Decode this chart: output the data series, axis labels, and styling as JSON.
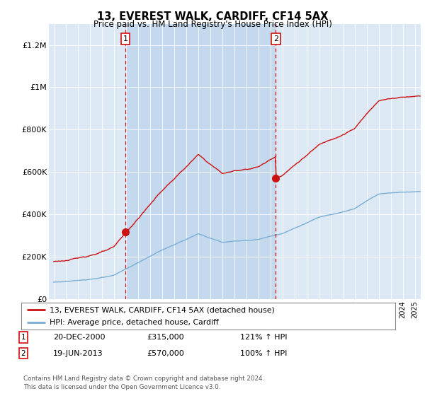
{
  "title": "13, EVEREST WALK, CARDIFF, CF14 5AX",
  "subtitle": "Price paid vs. HM Land Registry's House Price Index (HPI)",
  "legend_line1": "13, EVEREST WALK, CARDIFF, CF14 5AX (detached house)",
  "legend_line2": "HPI: Average price, detached house, Cardiff",
  "annotation1_date": "20-DEC-2000",
  "annotation1_price": 315000,
  "annotation1_hpi": "121% ↑ HPI",
  "annotation2_date": "19-JUN-2013",
  "annotation2_price": 570000,
  "annotation2_hpi": "100% ↑ HPI",
  "footer": "Contains HM Land Registry data © Crown copyright and database right 2024.\nThis data is licensed under the Open Government Licence v3.0.",
  "hpi_color": "#7aaed4",
  "price_color": "#cc1111",
  "vline_color": "#cc1111",
  "background_color": "#ffffff",
  "plot_bg_color": "#dce9f5",
  "shade_color": "#c5d9ee",
  "ylim": [
    0,
    1300000
  ],
  "sale1_year": 2000.963,
  "sale2_year": 2013.463
}
